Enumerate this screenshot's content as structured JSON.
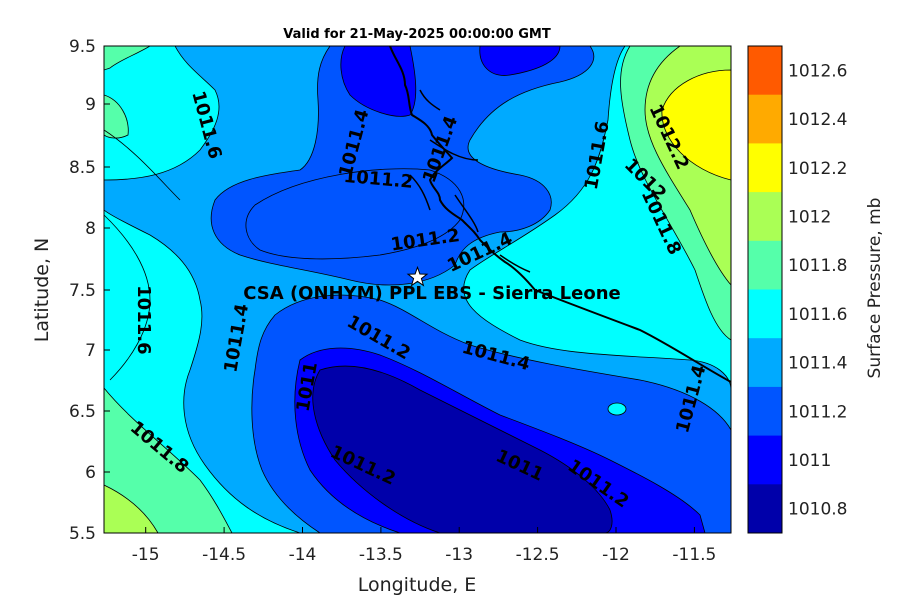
{
  "chart_data": {
    "type": "contour",
    "title": "Valid for 21-May-2025 00:00:00 GMT",
    "xlabel": "Longitude, E",
    "ylabel": "Latitude, N",
    "xlim": [
      -15.25,
      -11.25
    ],
    "ylim": [
      5.5,
      9.5
    ],
    "x_ticks": [
      "-15",
      "-14.5",
      "-14",
      "-13.5",
      "-13",
      "-12.5",
      "-12",
      "-11.5"
    ],
    "y_ticks": [
      "9.5",
      "9",
      "8.5",
      "8",
      "7.5",
      "7",
      "6.5",
      "6",
      "5.5"
    ],
    "site": {
      "label": "CSA (ONHYM) PPL EBS  - Sierra Leone",
      "lon": -13.25,
      "lat": 7.6
    },
    "colorbar": {
      "label": "Surface Pressure, mb",
      "levels": [
        "1012.6",
        "1012.4",
        "1012.2",
        "1012",
        "1011.8",
        "1011.6",
        "1011.4",
        "1011.2",
        "1011",
        "1010.8"
      ],
      "colors": [
        "#ff5a00",
        "#ffaa00",
        "#ffff00",
        "#aaff55",
        "#55ffaa",
        "#00ffff",
        "#00aaff",
        "#0055ff",
        "#0000ff",
        "#0000aa"
      ]
    },
    "contour_labels": [
      {
        "text": "1011.6",
        "lon": -14.6,
        "lat": 8.85,
        "rot": 75
      },
      {
        "text": "1011.4",
        "lon": -13.65,
        "lat": 8.7,
        "rot": -75
      },
      {
        "text": "1011.4",
        "lon": -13.1,
        "lat": 8.65,
        "rot": -70
      },
      {
        "text": "1011.2",
        "lon": -13.5,
        "lat": 8.4,
        "rot": 5
      },
      {
        "text": "1011.2",
        "lon": -13.2,
        "lat": 7.9,
        "rot": -8
      },
      {
        "text": "1011.4",
        "lon": -12.85,
        "lat": 7.8,
        "rot": -25
      },
      {
        "text": "1011.6",
        "lon": -12.1,
        "lat": 8.6,
        "rot": -80
      },
      {
        "text": "1012.2",
        "lon": -11.65,
        "lat": 8.75,
        "rot": 65
      },
      {
        "text": "1012",
        "lon": -11.8,
        "lat": 8.4,
        "rot": 45
      },
      {
        "text": "1011.8",
        "lon": -11.7,
        "lat": 8.05,
        "rot": 65
      },
      {
        "text": "1011.6",
        "lon": -15.0,
        "lat": 7.25,
        "rot": 90
      },
      {
        "text": "1011.4",
        "lon": -14.4,
        "lat": 7.1,
        "rot": -80
      },
      {
        "text": "1011.2",
        "lon": -13.5,
        "lat": 7.1,
        "rot": 30
      },
      {
        "text": "1011.4",
        "lon": -12.75,
        "lat": 6.95,
        "rot": 15
      },
      {
        "text": "1011",
        "lon": -13.95,
        "lat": 6.7,
        "rot": -80
      },
      {
        "text": "1011.8",
        "lon": -14.9,
        "lat": 6.2,
        "rot": 40
      },
      {
        "text": "1011.2",
        "lon": -13.6,
        "lat": 6.05,
        "rot": 25
      },
      {
        "text": "1011",
        "lon": -12.6,
        "lat": 6.05,
        "rot": 25
      },
      {
        "text": "1011.2",
        "lon": -12.1,
        "lat": 5.9,
        "rot": 35
      },
      {
        "text": "1011.4",
        "lon": -11.5,
        "lat": 6.6,
        "rot": -75
      }
    ]
  }
}
